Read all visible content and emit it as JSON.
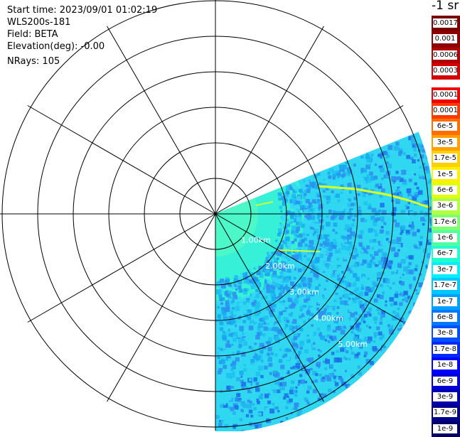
{
  "info": {
    "start_time": "Start time: 2023/09/01 01:02:19",
    "instrument": "WLS200s-181",
    "field": "Field: BETA",
    "elevation": "Elevation(deg): -0.00",
    "nrays": "NRays: 105"
  },
  "range_labels": [
    "1.00km",
    "2.00km",
    "3.00km",
    "4.00km",
    "5.00km"
  ],
  "colorbar": {
    "units": "-1 sr",
    "entries": [
      {
        "label": "0.0017",
        "color": "#7a0000"
      },
      {
        "label": "0.001",
        "color": "#8f0000"
      },
      {
        "label": "0.0006",
        "color": "#b00000"
      },
      {
        "label": "0.0003",
        "color": "#d40000"
      },
      {
        "label": "0.00017",
        "color": "#f00000"
      },
      {
        "label": "0.0001",
        "color": "#ff3a00"
      },
      {
        "label": "6e-5",
        "color": "#ff6e00"
      },
      {
        "label": "3e-5",
        "color": "#ffa000"
      },
      {
        "label": "1.7e-5",
        "color": "#ffd000"
      },
      {
        "label": "1e-5",
        "color": "#fff000"
      },
      {
        "label": "6e-6",
        "color": "#e0ff10"
      },
      {
        "label": "3e-6",
        "color": "#b0ff40"
      },
      {
        "label": "1.7e-6",
        "color": "#80ff70"
      },
      {
        "label": "1e-6",
        "color": "#50ffa0"
      },
      {
        "label": "6e-7",
        "color": "#20ffd0"
      },
      {
        "label": "3e-7",
        "color": "#00f0ff"
      },
      {
        "label": "1.7e-7",
        "color": "#00c8ff"
      },
      {
        "label": "1e-7",
        "color": "#00a0ff"
      },
      {
        "label": "6e-8",
        "color": "#0078ff"
      },
      {
        "label": "3e-8",
        "color": "#0050ff"
      },
      {
        "label": "1.7e-8",
        "color": "#0028ff"
      },
      {
        "label": "1e-8",
        "color": "#0000ff"
      },
      {
        "label": "6e-9",
        "color": "#0000d8"
      },
      {
        "label": "3e-9",
        "color": "#0000b0"
      },
      {
        "label": "1.7e-9",
        "color": "#00008a"
      },
      {
        "label": "1e-9",
        "color": "#000066"
      }
    ]
  }
}
